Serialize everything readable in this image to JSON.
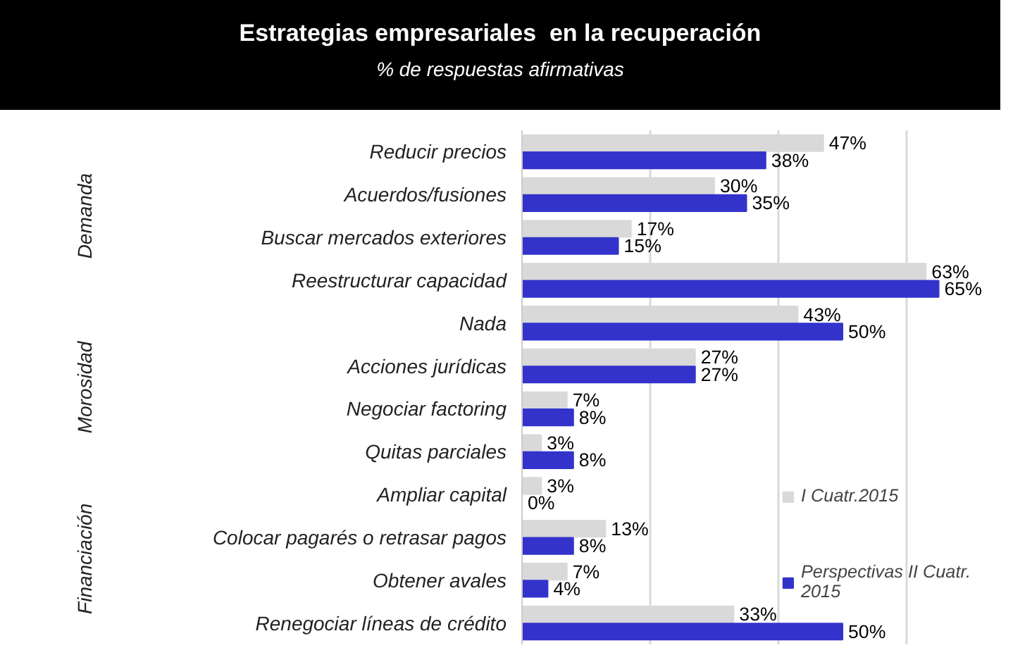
{
  "chart_data": {
    "type": "bar",
    "orientation": "horizontal",
    "title": "Estrategias empresariales  en la recuperación",
    "subtitle": "% de respuestas afirmativas",
    "categories": [
      "Reducir precios",
      "Acuerdos/fusiones",
      "Buscar mercados exteriores",
      "Reestructurar capacidad",
      "Nada",
      "Acciones jurídicas",
      "Negociar factoring",
      "Quitas parciales",
      "Ampliar capital",
      "Colocar pagarés o retrasar pagos",
      "Obtener avales",
      "Renegociar líneas de crédito"
    ],
    "series": [
      {
        "name": "I Cuatr.2015",
        "color": "#d9d9d9",
        "values": [
          47,
          30,
          17,
          63,
          43,
          27,
          7,
          3,
          3,
          13,
          7,
          33
        ],
        "value_labels": [
          "47%",
          "30%",
          "17%",
          "63%",
          "43%",
          "27%",
          "7%",
          "3%",
          "3%",
          "13%",
          "7%",
          "33%"
        ]
      },
      {
        "name": "Perspectivas II Cuatr. 2015",
        "color": "#3333cc",
        "values": [
          38,
          35,
          15,
          65,
          50,
          27,
          8,
          8,
          0,
          8,
          4,
          50
        ],
        "value_labels": [
          "38%",
          "35%",
          "15%",
          "65%",
          "50%",
          "27%",
          "8%",
          "8%",
          "0%",
          "8%",
          "4%",
          "50%"
        ]
      }
    ],
    "annotations": [
      "Demanda",
      "Morosidad",
      "Financiación"
    ],
    "xticks": [
      {
        "value": 0,
        "label": null
      },
      {
        "value": 20,
        "label": null
      },
      {
        "value": 40,
        "label": null
      },
      {
        "value": 60,
        "label": null
      }
    ],
    "tick_labels": "y",
    "grid": "x",
    "legend": "bottom right"
  }
}
